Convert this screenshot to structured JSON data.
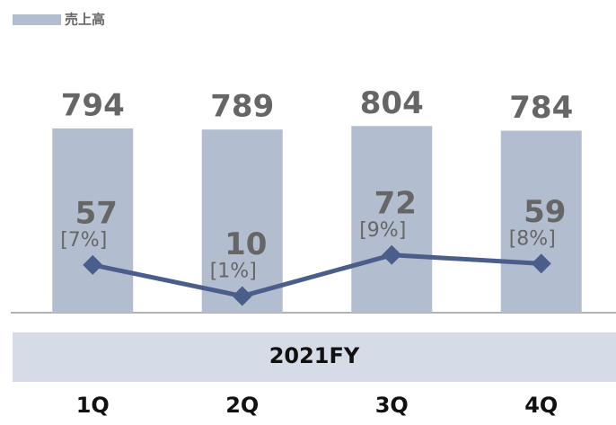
{
  "chart_data": {
    "type": "bar",
    "legend": "top-left",
    "categories": [
      "1Q",
      "2Q",
      "3Q",
      "4Q"
    ],
    "group_label": "2021FY",
    "ylim": [
      0,
      1200
    ],
    "y2lim": [
      -15,
      405
    ],
    "series": [
      {
        "name": "売上高",
        "type": "bar",
        "color": "#b3bdd0",
        "values": [
          794,
          789,
          804,
          784
        ]
      },
      {
        "type": "line",
        "axis": "y2",
        "color": "#4b5d8a",
        "values": [
          57,
          10,
          72,
          59
        ],
        "margin_labels": [
          "[7%]",
          "[1%]",
          "[9%]",
          "[8%]"
        ]
      }
    ]
  }
}
